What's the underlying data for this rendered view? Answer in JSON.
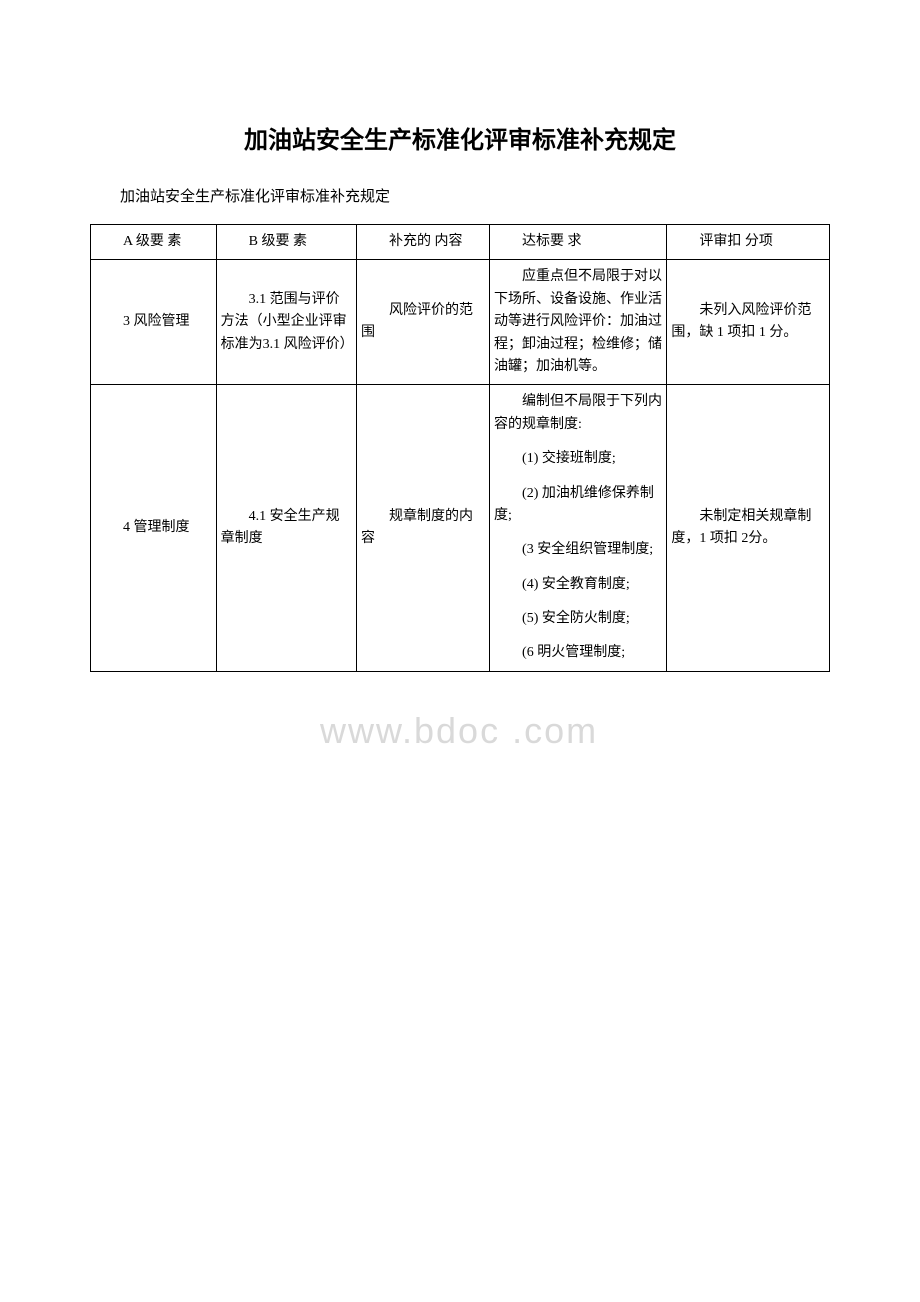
{
  "title": "加油站安全生产标准化评审标准补充规定",
  "subtitle": "加油站安全生产标准化评审标准补充规定",
  "watermark": "www.bdoc .com",
  "table": {
    "columns": [
      {
        "label_line1": "A 级要",
        "label_line2": "素"
      },
      {
        "label_line1": "B 级要",
        "label_line2": "素"
      },
      {
        "label_line1": "补充的",
        "label_line2": "内容"
      },
      {
        "label_line1": "达标要",
        "label_line2": "求"
      },
      {
        "label_line1": "评审扣",
        "label_line2": "分项"
      }
    ],
    "rows": [
      {
        "a": "3 风险管理",
        "b": "3.1 范围与评价方法（小型企业评审标准为3.1 风险评价）",
        "c": "风险评价的范围",
        "d_paras": [
          "应重点但不局限于对以下场所、设备设施、作业活动等进行风险评价：加油过程；卸油过程；检维修；储油罐；加油机等。"
        ],
        "e": "未列入风险评价范围，缺 1 项扣 1 分。"
      },
      {
        "a": "4 管理制度",
        "b": "4.1 安全生产规章制度",
        "c": "规章制度的内容",
        "d_paras": [
          "编制但不局限于下列内容的规章制度:",
          "(1) 交接班制度;",
          "(2) 加油机维修保养制度;",
          "(3 安全组织管理制度;",
          "(4) 安全教育制度;",
          "(5) 安全防火制度;",
          "(6 明火管理制度;"
        ],
        "e": "未制定相关规章制度，1 项扣 2分。"
      }
    ]
  },
  "styling": {
    "title_fontsize": 24,
    "subtitle_fontsize": 15,
    "cell_fontsize": 14,
    "border_color": "#000000",
    "background_color": "#ffffff",
    "watermark_color": "#d9d9d9",
    "col_widths_pct": [
      17,
      19,
      18,
      24,
      22
    ]
  }
}
